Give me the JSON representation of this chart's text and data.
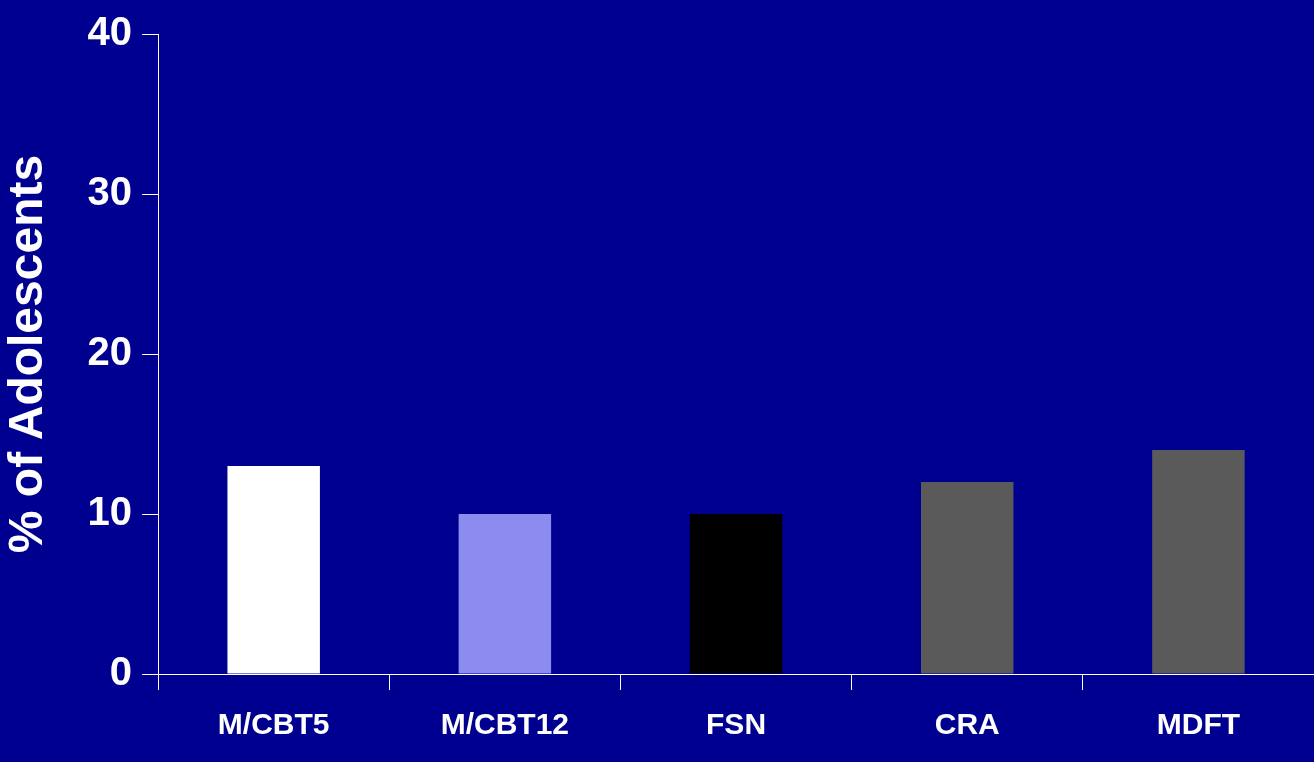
{
  "chart_data": {
    "type": "bar",
    "ylabel": "% of Adolescents",
    "categories": [
      "M/CBT5",
      "M/CBT12",
      "FSN",
      "CRA",
      "MDFT"
    ],
    "values": [
      13,
      10,
      10,
      12,
      14
    ],
    "colors": [
      "#ffffff",
      "#8c8cf0",
      "#000000",
      "#5a5a5a",
      "#5a5a5a"
    ],
    "ylim": [
      0,
      40
    ],
    "yticks": [
      0,
      10,
      20,
      30,
      40
    ],
    "grid": false,
    "legend": false
  }
}
